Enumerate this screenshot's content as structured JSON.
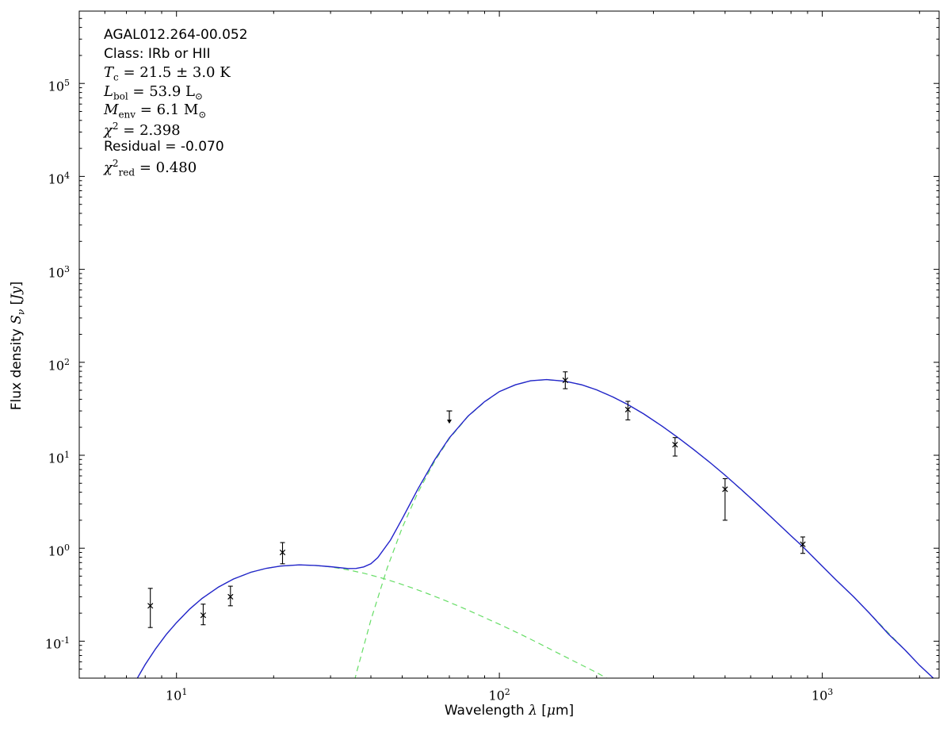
{
  "figure": {
    "background": "#ffffff",
    "annotation_lines": [
      {
        "text": "AGAL012.264-00.052",
        "font": "sans"
      },
      {
        "text": "Class: IRb or HII",
        "font": "sans"
      },
      {
        "text": "*T*_{c} = 21.5 ± 3.0 K",
        "font": "serif"
      },
      {
        "text": "*L*_{bol} = 53.9 L_{⊙}",
        "font": "serif"
      },
      {
        "text": "*M*_{env} = 6.1 M_{⊙}",
        "font": "serif"
      },
      {
        "text": "*χ*^{2} = 2.398",
        "font": "serif"
      },
      {
        "text": "Residual = -0.070",
        "font": "sans"
      },
      {
        "text": "*χ*^{2}_{red} = 0.480",
        "font": "serif"
      }
    ]
  },
  "chart_data": {
    "type": "line",
    "title": "",
    "xlabel": "Wavelength *λ* [*μ*m]",
    "ylabel": "Flux density *S*_{*ν*} [*Jy*]",
    "xscale": "log",
    "yscale": "log",
    "xlim": [
      5,
      2300
    ],
    "ylim": [
      0.04,
      600000
    ],
    "x_tick_exponents": [
      1,
      2,
      3
    ],
    "y_tick_exponents": [
      -1,
      0,
      1,
      2,
      3,
      4,
      5
    ],
    "grid": false,
    "legend": "none",
    "colors": {
      "total_model": "#2323cc",
      "components": "#66dd66",
      "data": "#000000",
      "frame": "#000000"
    },
    "series": [
      {
        "name": "warm-component-curve",
        "role": "model component",
        "style": "dashed",
        "color": "#66dd66",
        "width": 1.2,
        "dash": "7,5",
        "points": [
          [
            7,
            0.024
          ],
          [
            7.5,
            0.038
          ],
          [
            8,
            0.056
          ],
          [
            8.6,
            0.082
          ],
          [
            9.3,
            0.118
          ],
          [
            10,
            0.158
          ],
          [
            11,
            0.222
          ],
          [
            12,
            0.288
          ],
          [
            13.5,
            0.382
          ],
          [
            15,
            0.465
          ],
          [
            17,
            0.551
          ],
          [
            19,
            0.608
          ],
          [
            21,
            0.642
          ],
          [
            24,
            0.66
          ],
          [
            27,
            0.651
          ],
          [
            30,
            0.628
          ],
          [
            34,
            0.585
          ],
          [
            38,
            0.538
          ],
          [
            43,
            0.48
          ],
          [
            48,
            0.427
          ],
          [
            54,
            0.371
          ],
          [
            60,
            0.324
          ],
          [
            68,
            0.273
          ],
          [
            77,
            0.228
          ],
          [
            87,
            0.189
          ],
          [
            100,
            0.152
          ],
          [
            115,
            0.121
          ],
          [
            130,
            0.098
          ],
          [
            150,
            0.076
          ],
          [
            170,
            0.061
          ],
          [
            200,
            0.046
          ],
          [
            230,
            0.035
          ],
          [
            260,
            0.028
          ],
          [
            300,
            0.022
          ]
        ]
      },
      {
        "name": "cold-component-curve",
        "role": "model component",
        "style": "dashed",
        "color": "#66dd66",
        "width": 1.2,
        "dash": "7,5",
        "points": [
          [
            33,
            0.012
          ],
          [
            36,
            0.044
          ],
          [
            40,
            0.169
          ],
          [
            45,
            0.62
          ],
          [
            50,
            1.66
          ],
          [
            56,
            4.0
          ],
          [
            63,
            8.6
          ],
          [
            70,
            15.1
          ],
          [
            80,
            26.2
          ],
          [
            90,
            37.5
          ],
          [
            100,
            48.2
          ],
          [
            112,
            57.1
          ],
          [
            125,
            63.1
          ],
          [
            140,
            65
          ],
          [
            160,
            62.4
          ],
          [
            180,
            57.1
          ],
          [
            200,
            50.6
          ],
          [
            225,
            42.3
          ],
          [
            250,
            35.0
          ],
          [
            280,
            27.8
          ],
          [
            320,
            20.4
          ],
          [
            360,
            15.2
          ],
          [
            400,
            11.5
          ],
          [
            450,
            8.3
          ],
          [
            500,
            6.1
          ],
          [
            560,
            4.28
          ],
          [
            630,
            2.96
          ],
          [
            700,
            2.11
          ],
          [
            800,
            1.36
          ],
          [
            870,
            1.04
          ],
          [
            1000,
            0.64
          ],
          [
            1100,
            0.46
          ],
          [
            1250,
            0.3
          ],
          [
            1400,
            0.2
          ],
          [
            1600,
            0.123
          ],
          [
            1800,
            0.081
          ],
          [
            2000,
            0.055
          ],
          [
            2300,
            0.035
          ]
        ]
      },
      {
        "name": "total-model-curve",
        "role": "total model fit",
        "style": "solid",
        "color": "#2323cc",
        "width": 1.4,
        "dash": "",
        "points": [
          [
            7,
            0.024
          ],
          [
            7.5,
            0.038
          ],
          [
            8,
            0.056
          ],
          [
            8.6,
            0.082
          ],
          [
            9.3,
            0.118
          ],
          [
            10,
            0.158
          ],
          [
            11,
            0.222
          ],
          [
            12,
            0.288
          ],
          [
            13.5,
            0.382
          ],
          [
            15,
            0.465
          ],
          [
            17,
            0.551
          ],
          [
            19,
            0.608
          ],
          [
            21,
            0.642
          ],
          [
            24,
            0.661
          ],
          [
            27,
            0.653
          ],
          [
            30,
            0.632
          ],
          [
            34,
            0.604
          ],
          [
            36,
            0.605
          ],
          [
            38,
            0.628
          ],
          [
            40,
            0.68
          ],
          [
            42,
            0.79
          ],
          [
            46,
            1.22
          ],
          [
            50,
            2.07
          ],
          [
            56,
            4.36
          ],
          [
            63,
            8.9
          ],
          [
            70,
            15.4
          ],
          [
            80,
            26.4
          ],
          [
            90,
            37.7
          ],
          [
            100,
            48.4
          ],
          [
            112,
            57.2
          ],
          [
            125,
            63.2
          ],
          [
            140,
            65.1
          ],
          [
            160,
            62.5
          ],
          [
            180,
            57.2
          ],
          [
            200,
            50.6
          ],
          [
            225,
            42.3
          ],
          [
            250,
            35.1
          ],
          [
            280,
            27.8
          ],
          [
            320,
            20.4
          ],
          [
            360,
            15.2
          ],
          [
            400,
            11.5
          ],
          [
            450,
            8.3
          ],
          [
            500,
            6.1
          ],
          [
            560,
            4.3
          ],
          [
            630,
            2.97
          ],
          [
            700,
            2.11
          ],
          [
            800,
            1.36
          ],
          [
            870,
            1.04
          ],
          [
            1000,
            0.64
          ],
          [
            1100,
            0.46
          ],
          [
            1250,
            0.3
          ],
          [
            1400,
            0.2
          ],
          [
            1600,
            0.12
          ],
          [
            1800,
            0.081
          ],
          [
            2000,
            0.055
          ],
          [
            2300,
            0.035
          ]
        ]
      }
    ],
    "points": [
      {
        "x": 8.3,
        "y": 0.24,
        "bar": [
          0.14,
          0.37
        ],
        "marker": "x"
      },
      {
        "x": 12.1,
        "y": 0.19,
        "bar": [
          0.15,
          0.25
        ],
        "marker": "x"
      },
      {
        "x": 14.7,
        "y": 0.3,
        "bar": [
          0.24,
          0.39
        ],
        "marker": "x"
      },
      {
        "x": 21.3,
        "y": 0.9,
        "bar": [
          0.68,
          1.15
        ],
        "marker": "x"
      },
      {
        "x": 70,
        "y": 30,
        "upper_limit": true
      },
      {
        "x": 160,
        "y": 64,
        "bar": [
          52,
          79
        ],
        "marker": "x"
      },
      {
        "x": 250,
        "y": 31,
        "bar": [
          24,
          38
        ],
        "marker": "x"
      },
      {
        "x": 350,
        "y": 13,
        "bar": [
          9.8,
          15.5
        ],
        "marker": "x"
      },
      {
        "x": 500,
        "y": 4.3,
        "bar": [
          2.0,
          5.6
        ],
        "marker": "x"
      },
      {
        "x": 870,
        "y": 1.1,
        "bar": [
          0.88,
          1.32
        ],
        "marker": "x"
      }
    ]
  }
}
